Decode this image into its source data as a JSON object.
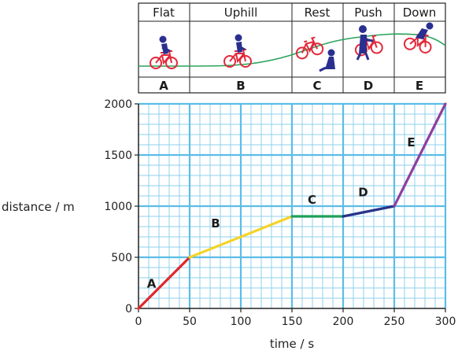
{
  "illustration": {
    "stages": [
      {
        "header": "Flat",
        "letter": "A",
        "icon": "cyclist-riding-icon"
      },
      {
        "header": "Uphill",
        "letter": "B",
        "icon": "cyclist-riding-icon"
      },
      {
        "header": "Rest",
        "letter": "C",
        "icon": "resting-cyclist-icon"
      },
      {
        "header": "Push",
        "letter": "D",
        "icon": "pushing-bike-icon"
      },
      {
        "header": "Down",
        "letter": "E",
        "icon": "cyclist-downhill-icon"
      }
    ]
  },
  "chart_data": {
    "type": "line",
    "xlabel": "time / s",
    "ylabel": "distance / m",
    "xlim": [
      0,
      300
    ],
    "ylim": [
      0,
      2000
    ],
    "x_ticks": [
      0,
      50,
      100,
      150,
      200,
      250,
      300
    ],
    "y_ticks": [
      0,
      500,
      1000,
      1500,
      2000
    ],
    "grid": true,
    "segments": [
      {
        "label": "A",
        "color": "#e0262b",
        "points": [
          [
            0,
            0
          ],
          [
            50,
            500
          ]
        ]
      },
      {
        "label": "B",
        "color": "#f5d327",
        "points": [
          [
            50,
            500
          ],
          [
            150,
            900
          ]
        ]
      },
      {
        "label": "C",
        "color": "#1fa05a",
        "points": [
          [
            150,
            900
          ],
          [
            200,
            900
          ]
        ]
      },
      {
        "label": "D",
        "color": "#27348b",
        "points": [
          [
            200,
            900
          ],
          [
            250,
            1000
          ]
        ]
      },
      {
        "label": "E",
        "color": "#8e3fa0",
        "points": [
          [
            250,
            1000
          ],
          [
            300,
            2000
          ]
        ]
      }
    ]
  },
  "colors": {
    "minor_grid": "#8fd0ec",
    "major_grid": "#5cbde6",
    "axis": "#222222",
    "bike_red": "#e3283a",
    "rider_blue": "#2a2f8f",
    "hill_green": "#2aa35a"
  }
}
